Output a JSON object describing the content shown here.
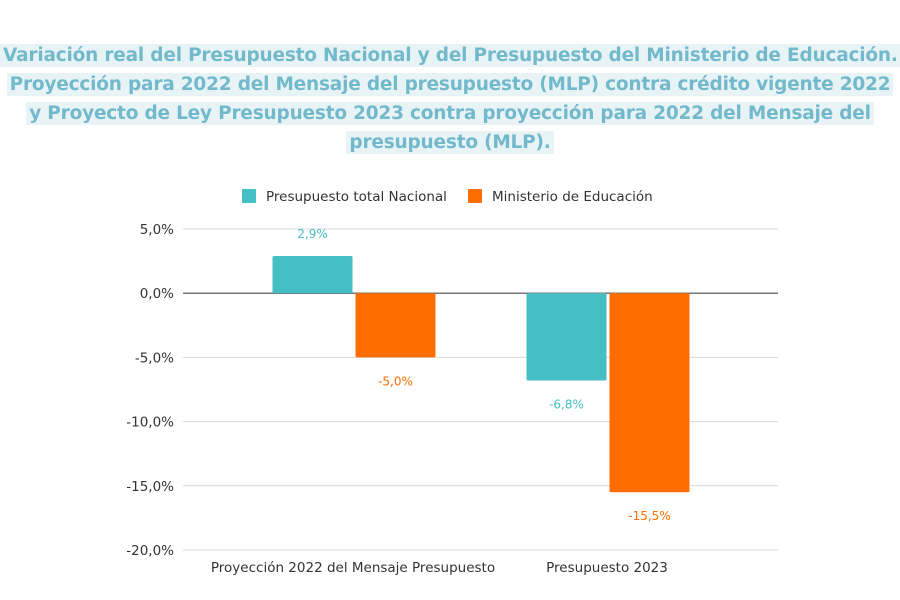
{
  "chart_data": {
    "type": "bar",
    "title": "Variación real del Presupuesto Nacional y del Presupuesto del Ministerio de Educación. Proyección para 2022 del Mensaje del presupuesto (MLP) contra crédito vigente 2022 y Proyecto de Ley Presupuesto 2023 contra proyección para 2022 del Mensaje del presupuesto (MLP).",
    "categories": [
      "Proyección 2022 del Mensaje Presupuesto",
      "Presupuesto 2023"
    ],
    "series": [
      {
        "name": "Presupuesto total Nacional",
        "values": [
          2.9,
          -6.8
        ],
        "labels": [
          "2,9%",
          "-6,8%"
        ],
        "color": "#46bec6"
      },
      {
        "name": "Ministerio de Educación",
        "values": [
          -5.0,
          -15.5
        ],
        "labels": [
          "-5,0%",
          "-15,5%"
        ],
        "color": "#ff6d00"
      }
    ],
    "ylim": [
      -20,
      5
    ],
    "yticks": [
      5,
      0,
      -5,
      -10,
      -15,
      -20
    ],
    "ytick_labels": [
      "5,0%",
      "0,0%",
      "-5,0%",
      "-10,0%",
      "-15,0%",
      "-20,0%"
    ],
    "grid": true,
    "legend": "top",
    "xlabel": "",
    "ylabel": ""
  }
}
